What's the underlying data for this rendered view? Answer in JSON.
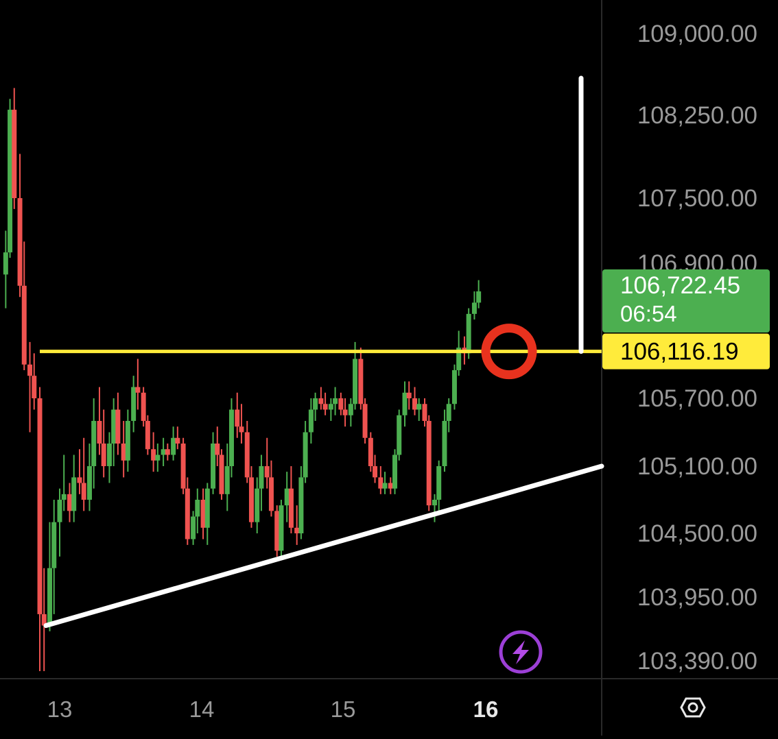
{
  "chart_data": {
    "type": "candlestick",
    "y_ticks": [
      "109,000.00",
      "108,250.00",
      "107,500.00",
      "106,900.00",
      "105,700.00",
      "105,100.00",
      "104,500.00",
      "103,950.00",
      "103,390.00"
    ],
    "y_tick_values": [
      109000,
      108250,
      107500,
      106900,
      105700,
      105100,
      104500,
      103950,
      103390
    ],
    "x_ticks": [
      {
        "label": "13",
        "bold": false
      },
      {
        "label": "14",
        "bold": false
      },
      {
        "label": "15",
        "bold": false
      },
      {
        "label": "16",
        "bold": true
      }
    ],
    "current_price": {
      "value": "106,722.45",
      "countdown": "06:54",
      "color": "#4caf50"
    },
    "horizontal_line": {
      "value": 106116.19,
      "label": "106,116.19",
      "color": "#ffeb3b"
    },
    "trend_line": {
      "from": {
        "day": 13.0,
        "price": 103700
      },
      "to": {
        "day": 16.7,
        "price": 105100
      },
      "color": "#ffffff"
    },
    "marker_ring": {
      "day": 16.1,
      "price": 106116.19,
      "color": "#e8321e"
    },
    "vertical_line": {
      "day": 16.6,
      "from_price": 108590,
      "to_price": 106116.19,
      "color": "#ffffff"
    },
    "up_color": "#4caf50",
    "down_color": "#ef5350",
    "candles": [
      [
        12.62,
        106800,
        107200,
        106500,
        107000
      ],
      [
        12.65,
        107000,
        108400,
        106950,
        108300
      ],
      [
        12.68,
        108300,
        108500,
        107400,
        107500
      ],
      [
        12.72,
        107500,
        107900,
        106600,
        106700
      ],
      [
        12.75,
        106700,
        107100,
        105950,
        106000
      ],
      [
        12.79,
        106000,
        106200,
        105400,
        105900
      ],
      [
        12.82,
        105900,
        106100,
        105600,
        105700
      ],
      [
        12.86,
        105700,
        105800,
        103300,
        103800
      ],
      [
        12.89,
        103800,
        104200,
        103300,
        103700
      ],
      [
        12.93,
        103700,
        104600,
        103650,
        104200
      ],
      [
        12.96,
        104200,
        104800,
        103800,
        104600
      ],
      [
        13.0,
        104600,
        104900,
        104300,
        104800
      ],
      [
        13.03,
        104800,
        105200,
        104700,
        104850
      ],
      [
        13.07,
        104850,
        104950,
        104600,
        104700
      ],
      [
        13.1,
        104700,
        105200,
        104600,
        105000
      ],
      [
        13.14,
        105000,
        105250,
        104850,
        104950
      ],
      [
        13.17,
        104950,
        105350,
        104700,
        104800
      ],
      [
        13.21,
        104800,
        105300,
        104700,
        105100
      ],
      [
        13.24,
        105100,
        105700,
        104900,
        105500
      ],
      [
        13.28,
        105500,
        105800,
        105200,
        105300
      ],
      [
        13.31,
        105300,
        105600,
        105000,
        105100
      ],
      [
        13.35,
        105100,
        105400,
        104950,
        105300
      ],
      [
        13.38,
        105300,
        105700,
        105100,
        105600
      ],
      [
        13.41,
        105600,
        105750,
        105200,
        105300
      ],
      [
        13.45,
        105300,
        105500,
        105000,
        105150
      ],
      [
        13.48,
        105150,
        105600,
        105050,
        105500
      ],
      [
        13.52,
        105500,
        105900,
        105400,
        105800
      ],
      [
        13.55,
        105800,
        106050,
        105600,
        105750
      ],
      [
        13.59,
        105750,
        105800,
        105450,
        105500
      ],
      [
        13.62,
        105500,
        105550,
        105200,
        105250
      ],
      [
        13.66,
        105250,
        105400,
        105050,
        105150
      ],
      [
        13.69,
        105150,
        105300,
        105050,
        105200
      ],
      [
        13.73,
        105200,
        105350,
        105100,
        105250
      ],
      [
        13.76,
        105250,
        105300,
        105150,
        105200
      ],
      [
        13.8,
        105200,
        105450,
        105150,
        105350
      ],
      [
        13.83,
        105350,
        105450,
        105250,
        105300
      ],
      [
        13.87,
        105300,
        105350,
        104850,
        104900
      ],
      [
        13.9,
        104900,
        105000,
        104400,
        104450
      ],
      [
        13.94,
        104450,
        104700,
        104400,
        104650
      ],
      [
        13.97,
        104650,
        104900,
        104500,
        104800
      ],
      [
        14.01,
        104800,
        104900,
        104450,
        104550
      ],
      [
        14.04,
        104550,
        104950,
        104400,
        104900
      ],
      [
        14.08,
        104900,
        105400,
        104850,
        105300
      ],
      [
        14.11,
        105300,
        105450,
        105100,
        105200
      ],
      [
        14.14,
        105200,
        105250,
        104800,
        104850
      ],
      [
        14.18,
        104850,
        105300,
        104700,
        105100
      ],
      [
        14.21,
        105100,
        105700,
        105000,
        105600
      ],
      [
        14.25,
        105600,
        105750,
        105350,
        105450
      ],
      [
        14.28,
        105450,
        105650,
        105300,
        105400
      ],
      [
        14.32,
        105400,
        105500,
        104950,
        105000
      ],
      [
        14.35,
        105000,
        105100,
        104550,
        104600
      ],
      [
        14.39,
        104600,
        105000,
        104500,
        104900
      ],
      [
        14.42,
        104900,
        105200,
        104700,
        105100
      ],
      [
        14.46,
        105100,
        105350,
        104900,
        105000
      ],
      [
        14.49,
        105000,
        105150,
        104650,
        104700
      ],
      [
        14.53,
        104700,
        104750,
        104300,
        104350
      ],
      [
        14.56,
        104350,
        104800,
        104300,
        104750
      ],
      [
        14.6,
        104750,
        105050,
        104600,
        104900
      ],
      [
        14.63,
        104900,
        105100,
        104500,
        104550
      ],
      [
        14.67,
        104550,
        104750,
        104400,
        104500
      ],
      [
        14.7,
        104500,
        105100,
        104450,
        105000
      ],
      [
        14.73,
        105000,
        105500,
        104950,
        105400
      ],
      [
        14.77,
        105400,
        105700,
        105300,
        105600
      ],
      [
        14.8,
        105600,
        105750,
        105500,
        105700
      ],
      [
        14.84,
        105700,
        105800,
        105600,
        105650
      ],
      [
        14.87,
        105650,
        105750,
        105550,
        105600
      ],
      [
        14.91,
        105600,
        105700,
        105500,
        105650
      ],
      [
        14.94,
        105650,
        105800,
        105550,
        105700
      ],
      [
        14.98,
        105700,
        105750,
        105550,
        105600
      ],
      [
        15.01,
        105600,
        105700,
        105450,
        105550
      ],
      [
        15.05,
        105550,
        105700,
        105450,
        105650
      ],
      [
        15.08,
        105650,
        106200,
        105600,
        106050
      ],
      [
        15.12,
        106050,
        106150,
        105600,
        105650
      ],
      [
        15.15,
        105650,
        105700,
        105300,
        105350
      ],
      [
        15.19,
        105350,
        105400,
        105050,
        105100
      ],
      [
        15.22,
        105100,
        105200,
        104950,
        105000
      ],
      [
        15.26,
        105000,
        105100,
        104850,
        104900
      ],
      [
        15.29,
        104900,
        105050,
        104850,
        104950
      ],
      [
        15.33,
        104950,
        105000,
        104850,
        104900
      ],
      [
        15.36,
        104900,
        105250,
        104850,
        105200
      ],
      [
        15.39,
        105200,
        105600,
        105150,
        105550
      ],
      [
        15.43,
        105550,
        105850,
        105450,
        105750
      ],
      [
        15.46,
        105750,
        105850,
        105600,
        105700
      ],
      [
        15.5,
        105700,
        105800,
        105550,
        105600
      ],
      [
        15.53,
        105600,
        105700,
        105500,
        105650
      ],
      [
        15.57,
        105650,
        105700,
        105450,
        105500
      ],
      [
        15.6,
        105500,
        105550,
        104700,
        104750
      ],
      [
        15.64,
        104750,
        104850,
        104600,
        104800
      ],
      [
        15.67,
        104800,
        105150,
        104700,
        105100
      ],
      [
        15.71,
        105100,
        105600,
        105050,
        105500
      ],
      [
        15.74,
        105500,
        105700,
        105400,
        105650
      ],
      [
        15.78,
        105650,
        106000,
        105600,
        105950
      ],
      [
        15.81,
        105950,
        106300,
        105900,
        106150
      ],
      [
        15.85,
        106150,
        106250,
        106000,
        106100
      ],
      [
        15.88,
        106100,
        106500,
        106050,
        106450
      ],
      [
        15.92,
        106450,
        106650,
        106400,
        106550
      ],
      [
        15.95,
        106550,
        106750,
        106500,
        106650
      ]
    ]
  }
}
